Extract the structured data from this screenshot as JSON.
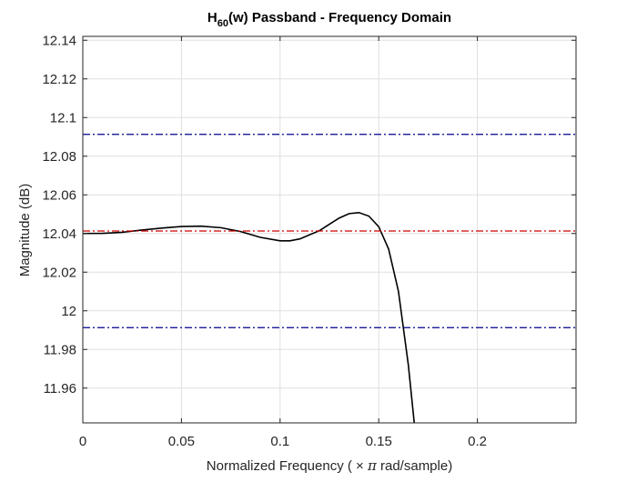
{
  "chart_data": {
    "type": "line",
    "title": {
      "main": "H",
      "subscript": "60",
      "rest": "(w) Passband - Frequency Domain"
    },
    "xlabel": {
      "before": "Normalized Frequency (",
      "times": "×",
      "pi": "π",
      "after": "rad/sample)"
    },
    "ylabel": "Magnitude (dB)",
    "xlim": [
      0,
      0.25
    ],
    "ylim": [
      11.942,
      12.142
    ],
    "xticks": [
      {
        "v": 0,
        "label": "0"
      },
      {
        "v": 0.05,
        "label": "0.05"
      },
      {
        "v": 0.1,
        "label": "0.1"
      },
      {
        "v": 0.15,
        "label": "0.15"
      },
      {
        "v": 0.2,
        "label": "0.2"
      }
    ],
    "yticks": [
      {
        "v": 11.96,
        "label": "11.96"
      },
      {
        "v": 11.98,
        "label": "11.98"
      },
      {
        "v": 12.0,
        "label": "12"
      },
      {
        "v": 12.02,
        "label": "12.02"
      },
      {
        "v": 12.04,
        "label": "12.04"
      },
      {
        "v": 12.06,
        "label": "12.06"
      },
      {
        "v": 12.08,
        "label": "12.08"
      },
      {
        "v": 12.1,
        "label": "12.1"
      },
      {
        "v": 12.12,
        "label": "12.12"
      },
      {
        "v": 12.14,
        "label": "12.14"
      }
    ],
    "grid": true,
    "box": true,
    "series": [
      {
        "color": "#000000",
        "style": "solid",
        "x": [
          0,
          0.01,
          0.02,
          0.03,
          0.04,
          0.05,
          0.06,
          0.07,
          0.08,
          0.09,
          0.1,
          0.105,
          0.11,
          0.12,
          0.125,
          0.13,
          0.135,
          0.14,
          0.145,
          0.15,
          0.155,
          0.16,
          0.165,
          0.168
        ],
        "y": [
          12.04,
          12.0401,
          12.0406,
          12.0418,
          12.0428,
          12.0436,
          12.0438,
          12.043,
          12.041,
          12.038,
          12.0362,
          12.0362,
          12.0372,
          12.0415,
          12.0448,
          12.048,
          12.0503,
          12.0508,
          12.049,
          12.0435,
          12.032,
          12.01,
          11.972,
          11.942
        ]
      },
      {
        "color": "#cc0000",
        "style": "dashdot",
        "x": [
          0,
          0.25
        ],
        "y": [
          12.0413,
          12.0413
        ]
      },
      {
        "color": "#00008b",
        "style": "dashdot",
        "x": [
          0,
          0.25
        ],
        "y": [
          12.0913,
          12.0913
        ]
      },
      {
        "color": "#00008b",
        "style": "dashdot",
        "x": [
          0,
          0.25
        ],
        "y": [
          11.9913,
          11.9913
        ]
      }
    ]
  }
}
